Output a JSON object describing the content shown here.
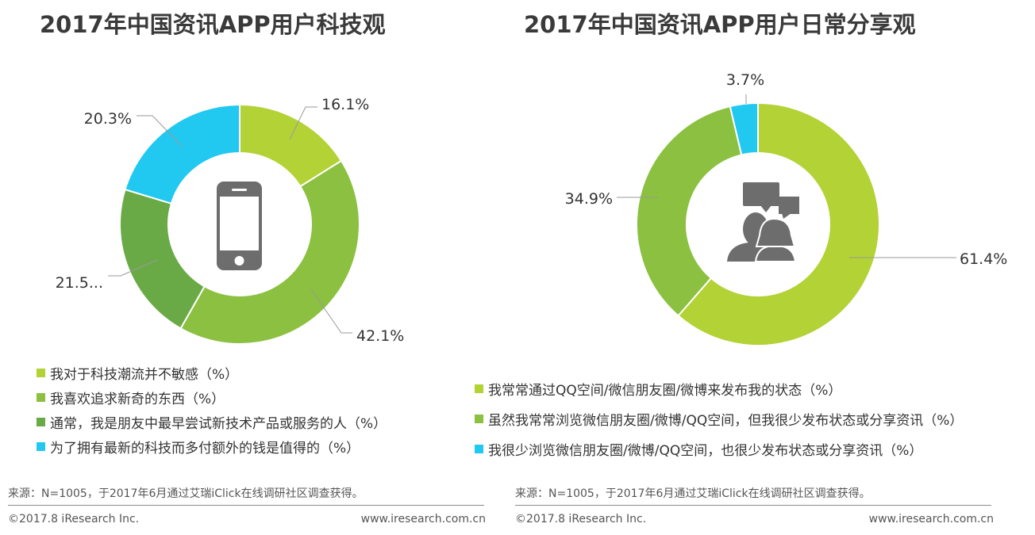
{
  "source_text": "来源：N=1005，于2017年6月通过艾瑞iClick在线调研社区调查获得。",
  "copyright": "©2017.8 iResearch Inc.",
  "website": "www.iresearch.com.cn",
  "icons": {
    "left_center": "smartphone-icon",
    "right_center": "people-chat-icon"
  },
  "chart_data": [
    {
      "type": "pie",
      "title": "2017年中国资讯APP用户科技观",
      "categories": [
        "我对于科技潮流并不敏感（%）",
        "我喜欢追求新奇的东西（%）",
        "通常，我是朋友中最早尝试新技术产品或服务的人（%）",
        "为了拥有最新的科技而多付额外的钱是值得的（%）"
      ],
      "values": [
        16.1,
        42.1,
        21.5,
        20.3
      ],
      "value_labels": [
        "16.1%",
        "42.1%",
        "21.5...",
        "20.3%"
      ],
      "colors": [
        "#b3d235",
        "#8bc040",
        "#6aaa46",
        "#21c8f0"
      ],
      "legend_position": "bottom-left"
    },
    {
      "type": "pie",
      "title": "2017年中国资讯APP用户日常分享观",
      "categories": [
        "我常常通过QQ空间/微信朋友圈/微博来发布我的状态（%）",
        "虽然我常常浏览微信朋友圈/微博/QQ空间，但我很少发布状态或分享资讯（%）",
        "我很少浏览微信朋友圈/微博/QQ空间，也很少发布状态或分享资讯（%）"
      ],
      "values": [
        61.4,
        34.9,
        3.7
      ],
      "value_labels": [
        "61.4%",
        "34.9%",
        "3.7%"
      ],
      "colors": [
        "#b3d235",
        "#8bc040",
        "#21c8f0"
      ],
      "legend_position": "bottom-left"
    }
  ]
}
